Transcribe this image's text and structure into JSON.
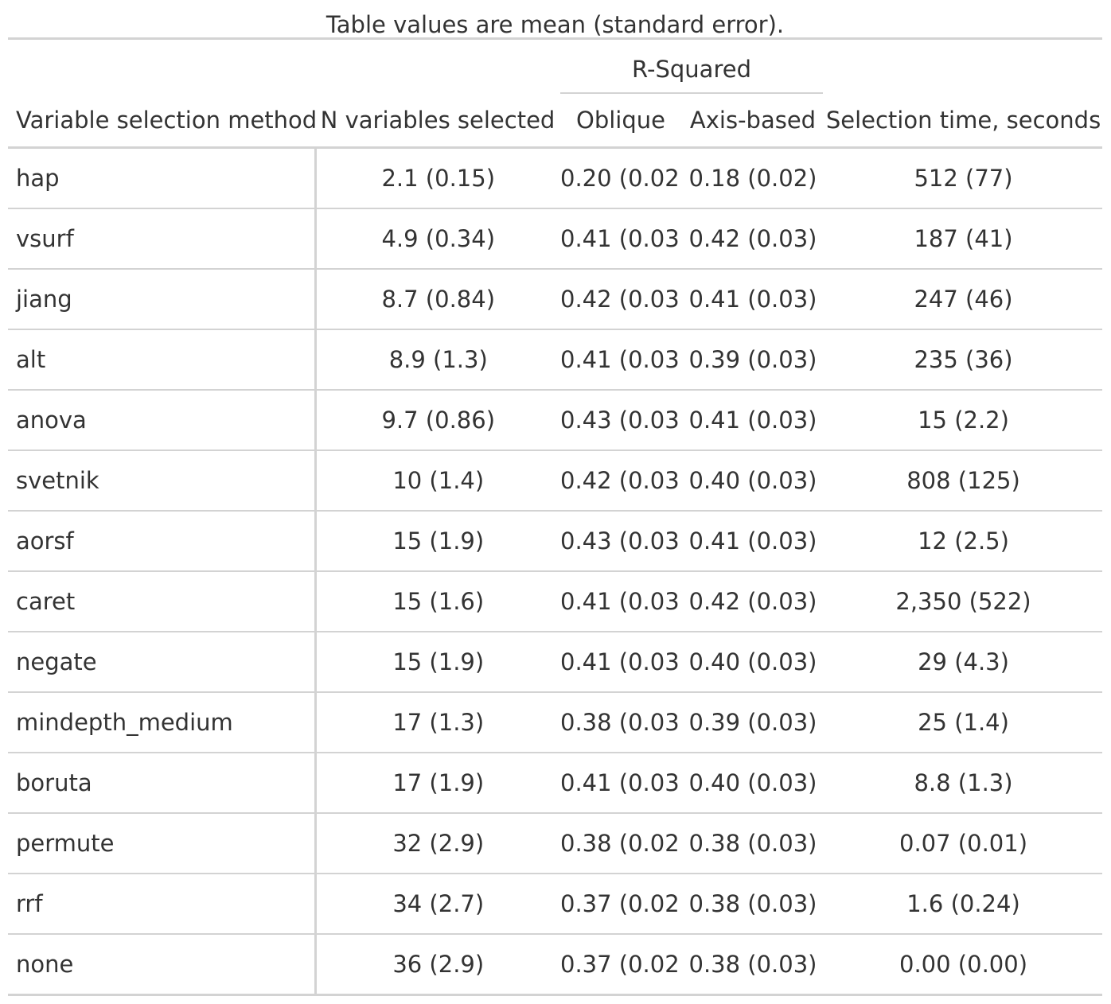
{
  "table": {
    "caption": "Table values are mean (standard error).",
    "spanner": "R-Squared",
    "columns": [
      "Variable selection method",
      "N variables selected",
      "Oblique",
      "Axis-based",
      "Selection time, seconds"
    ],
    "rows": [
      [
        "hap",
        "2.1 (0.15)",
        "0.20 (0.02)",
        "0.18 (0.02)",
        "512 (77)"
      ],
      [
        "vsurf",
        "4.9 (0.34)",
        "0.41 (0.03)",
        "0.42 (0.03)",
        "187 (41)"
      ],
      [
        "jiang",
        "8.7 (0.84)",
        "0.42 (0.03)",
        "0.41 (0.03)",
        "247 (46)"
      ],
      [
        "alt",
        "8.9 (1.3)",
        "0.41 (0.03)",
        "0.39 (0.03)",
        "235 (36)"
      ],
      [
        "anova",
        "9.7 (0.86)",
        "0.43 (0.03)",
        "0.41 (0.03)",
        "15 (2.2)"
      ],
      [
        "svetnik",
        "10 (1.4)",
        "0.42 (0.03)",
        "0.40 (0.03)",
        "808 (125)"
      ],
      [
        "aorsf",
        "15 (1.9)",
        "0.43 (0.03)",
        "0.41 (0.03)",
        "12 (2.5)"
      ],
      [
        "caret",
        "15 (1.6)",
        "0.41 (0.03)",
        "0.42 (0.03)",
        "2,350 (522)"
      ],
      [
        "negate",
        "15 (1.9)",
        "0.41 (0.03)",
        "0.40 (0.03)",
        "29 (4.3)"
      ],
      [
        "mindepth_medium",
        "17 (1.3)",
        "0.38 (0.03)",
        "0.39 (0.03)",
        "25 (1.4)"
      ],
      [
        "boruta",
        "17 (1.9)",
        "0.41 (0.03)",
        "0.40 (0.03)",
        "8.8 (1.3)"
      ],
      [
        "permute",
        "32 (2.9)",
        "0.38 (0.02)",
        "0.38 (0.03)",
        "0.07 (0.01)"
      ],
      [
        "rrf",
        "34 (2.7)",
        "0.37 (0.02)",
        "0.38 (0.03)",
        "1.6 (0.24)"
      ],
      [
        "none",
        "36 (2.9)",
        "0.37 (0.02)",
        "0.38 (0.03)",
        "0.00 (0.00)"
      ]
    ]
  }
}
